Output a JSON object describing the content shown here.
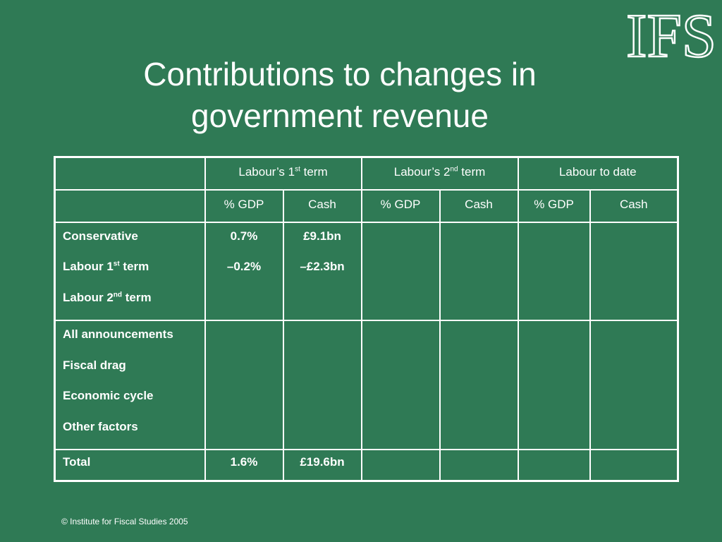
{
  "slide": {
    "title": "Contributions to changes in government revenue",
    "logo_text": "IFS",
    "footer": "© Institute for Fiscal Studies 2005"
  },
  "table": {
    "periods": [
      {
        "label": "Labour’s 1",
        "sup": "st",
        "suffix": " term"
      },
      {
        "label": "Labour’s 2",
        "sup": "nd",
        "suffix": " term"
      },
      {
        "label": "Labour to date",
        "sup": "",
        "suffix": ""
      }
    ],
    "subheaders": [
      "% GDP",
      "Cash",
      "% GDP",
      "Cash",
      "% GDP",
      "Cash"
    ],
    "groups": [
      {
        "rows": [
          {
            "label": "Conservative",
            "sup": "",
            "suffix": "",
            "values": [
              "0.7%",
              "£9.1bn",
              "",
              "",
              "",
              ""
            ]
          },
          {
            "label": "Labour 1",
            "sup": "st",
            "suffix": " term",
            "values": [
              "–0.2%",
              "–£2.3bn",
              "",
              "",
              "",
              ""
            ]
          },
          {
            "label": "Labour 2",
            "sup": "nd",
            "suffix": " term",
            "values": [
              "",
              "",
              "",
              "",
              "",
              ""
            ]
          }
        ]
      },
      {
        "rows": [
          {
            "label": "All announcements",
            "sup": "",
            "suffix": "",
            "values": [
              "",
              "",
              "",
              "",
              "",
              ""
            ]
          },
          {
            "label": "Fiscal drag",
            "sup": "",
            "suffix": "",
            "values": [
              "",
              "",
              "",
              "",
              "",
              ""
            ]
          },
          {
            "label": "Economic cycle",
            "sup": "",
            "suffix": "",
            "values": [
              "",
              "",
              "",
              "",
              "",
              ""
            ]
          },
          {
            "label": "Other factors",
            "sup": "",
            "suffix": "",
            "values": [
              "",
              "",
              "",
              "",
              "",
              ""
            ]
          }
        ]
      }
    ],
    "total": {
      "label": "Total",
      "values": [
        "1.6%",
        "£19.6bn",
        "",
        "",
        "",
        ""
      ]
    }
  },
  "colors": {
    "background": "#2f7a55",
    "text": "#ffffff"
  }
}
